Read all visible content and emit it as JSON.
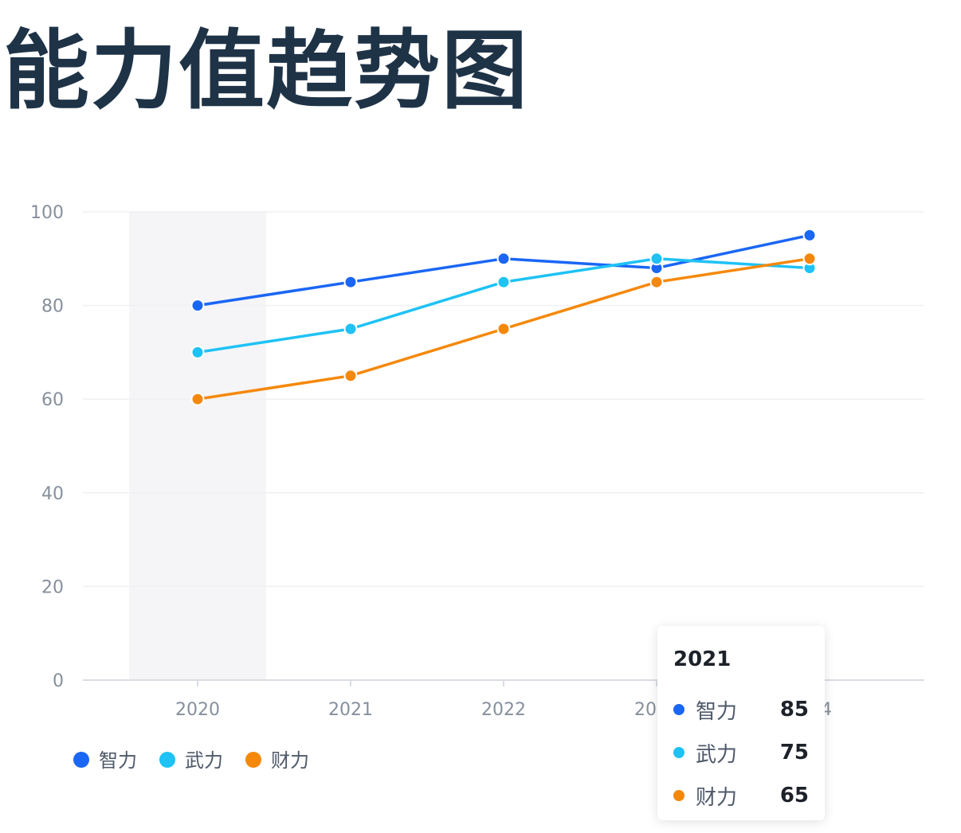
{
  "page": {
    "title": "能力值趋势图"
  },
  "colors": {
    "axis_text": "#86909c",
    "grid": "#eef0f3",
    "axis_line": "#d9dde3",
    "highlight_band": "#f5f5f7"
  },
  "chart_data": {
    "type": "line",
    "title": "",
    "xlabel": "",
    "ylabel": "",
    "categories": [
      "2020",
      "2021",
      "2022",
      "2023",
      "2024"
    ],
    "ylim": [
      0,
      100
    ],
    "yticks": [
      0,
      20,
      40,
      60,
      80,
      100
    ],
    "grid": true,
    "legend": "bottom-left",
    "highlighted_category": "2020",
    "series": [
      {
        "name": "智力",
        "color": "#1a66f5",
        "values": [
          80,
          85,
          90,
          88,
          95
        ]
      },
      {
        "name": "武力",
        "color": "#1ec2f5",
        "values": [
          70,
          75,
          85,
          90,
          88
        ]
      },
      {
        "name": "财力",
        "color": "#f5880a",
        "values": [
          60,
          65,
          75,
          85,
          90
        ]
      }
    ]
  },
  "tooltip": {
    "title": "2021",
    "rows": [
      {
        "name": "智力",
        "value": "85",
        "color": "#1a66f5"
      },
      {
        "name": "武力",
        "value": "75",
        "color": "#1ec2f5"
      },
      {
        "name": "财力",
        "value": "65",
        "color": "#f5880a"
      }
    ]
  }
}
